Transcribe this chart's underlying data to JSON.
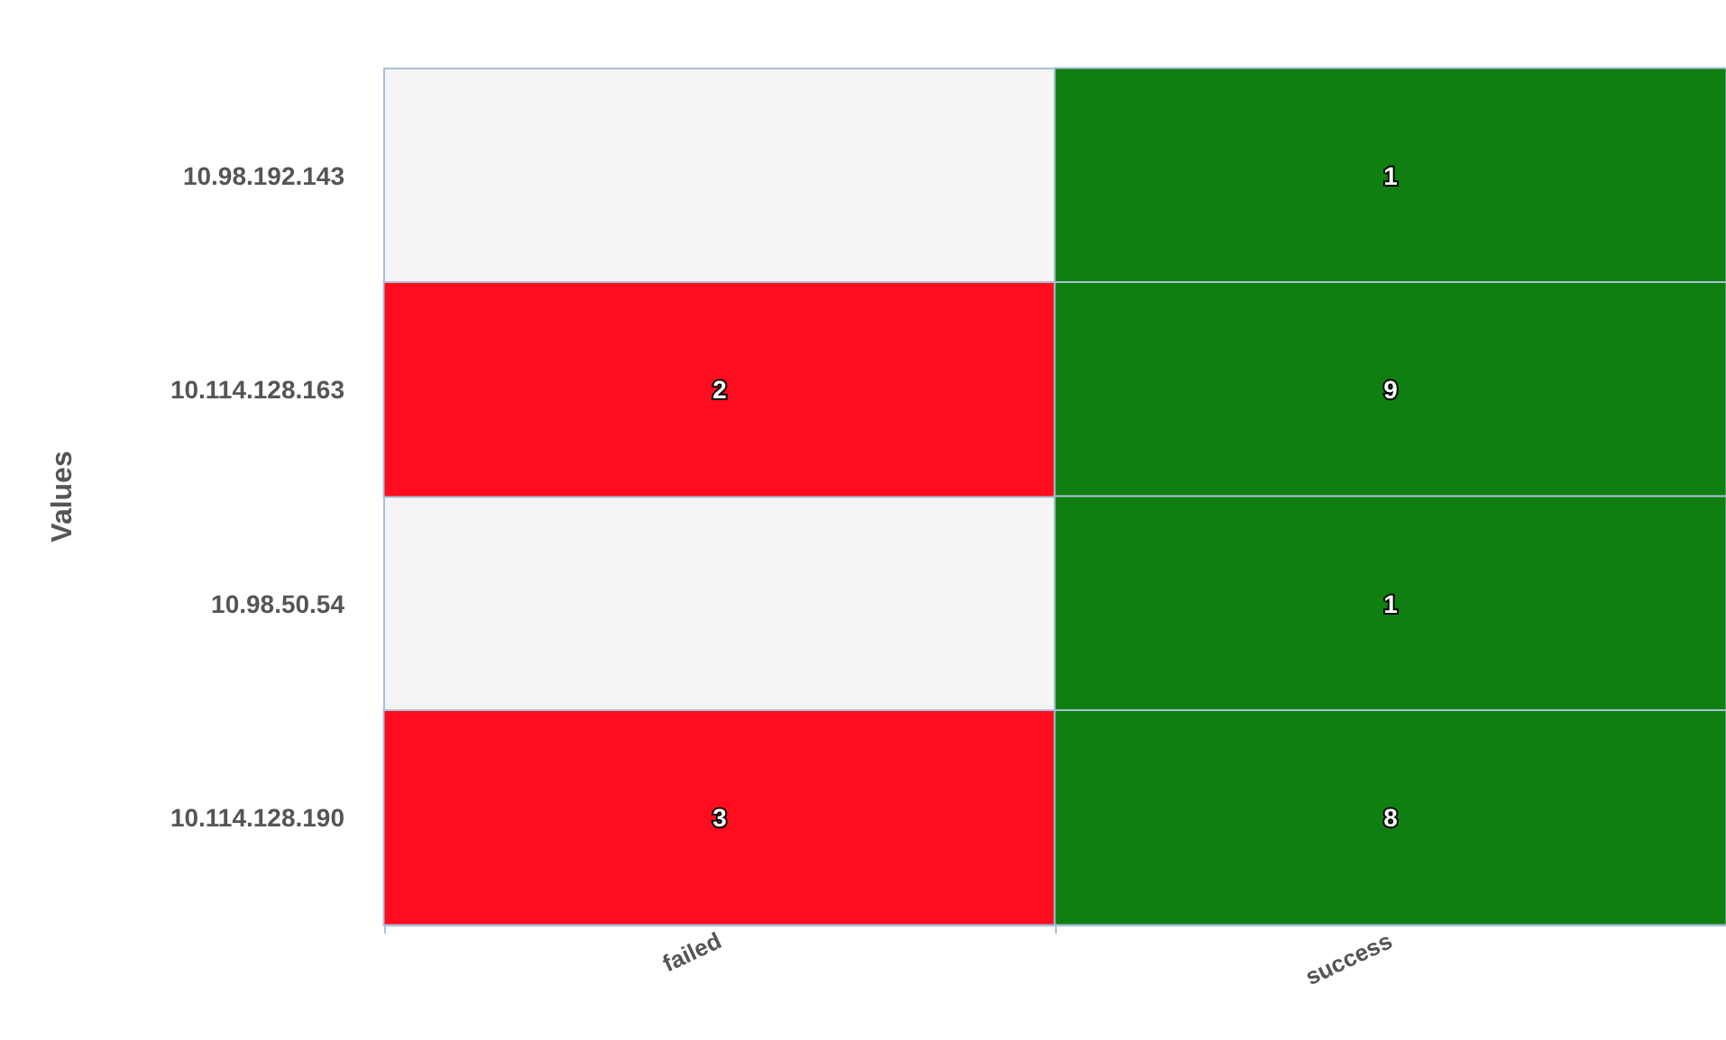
{
  "chart_data": {
    "type": "heatmap",
    "ylabel": "Values",
    "categories": [
      "failed",
      "success"
    ],
    "y_categories": [
      "10.98.192.143",
      "10.114.128.163",
      "10.98.50.54",
      "10.114.128.190"
    ],
    "cells": [
      [
        null,
        1
      ],
      [
        2,
        9
      ],
      [
        null,
        1
      ],
      [
        3,
        8
      ]
    ],
    "colors": [
      [
        null,
        "#107f12"
      ],
      [
        "#ff0d1f",
        "#107f12"
      ],
      [
        null,
        "#107f12"
      ],
      [
        "#ff0d1f",
        "#107f12"
      ]
    ],
    "data_labels": true
  }
}
